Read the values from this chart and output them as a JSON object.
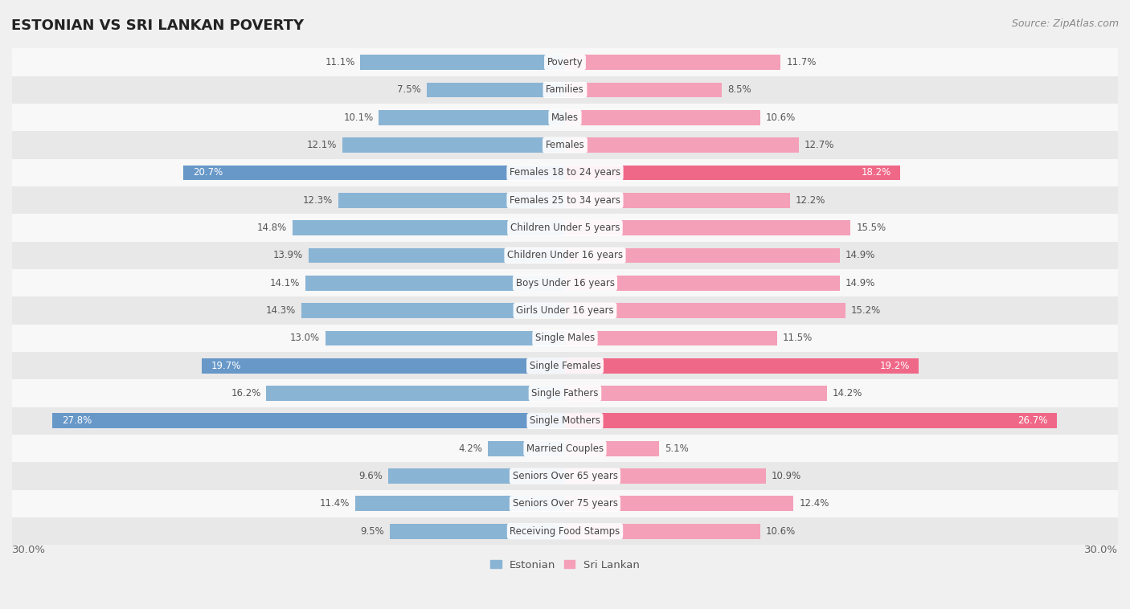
{
  "title": "ESTONIAN VS SRI LANKAN POVERTY",
  "source": "Source: ZipAtlas.com",
  "categories": [
    "Poverty",
    "Families",
    "Males",
    "Females",
    "Females 18 to 24 years",
    "Females 25 to 34 years",
    "Children Under 5 years",
    "Children Under 16 years",
    "Boys Under 16 years",
    "Girls Under 16 years",
    "Single Males",
    "Single Females",
    "Single Fathers",
    "Single Mothers",
    "Married Couples",
    "Seniors Over 65 years",
    "Seniors Over 75 years",
    "Receiving Food Stamps"
  ],
  "estonian": [
    11.1,
    7.5,
    10.1,
    12.1,
    20.7,
    12.3,
    14.8,
    13.9,
    14.1,
    14.3,
    13.0,
    19.7,
    16.2,
    27.8,
    4.2,
    9.6,
    11.4,
    9.5
  ],
  "sri_lankan": [
    11.7,
    8.5,
    10.6,
    12.7,
    18.2,
    12.2,
    15.5,
    14.9,
    14.9,
    15.2,
    11.5,
    19.2,
    14.2,
    26.7,
    5.1,
    10.9,
    12.4,
    10.6
  ],
  "estonian_color": "#8ab4d4",
  "sri_lankan_color": "#f4a0b8",
  "estonian_highlight_color": "#6898c8",
  "sri_lankan_highlight_color": "#f06888",
  "background_color": "#f0f0f0",
  "row_light_color": "#f8f8f8",
  "row_dark_color": "#e8e8e8",
  "highlight_threshold": 17.0,
  "xlim": 30.0,
  "bar_height": 0.55,
  "label_fontsize": 8.5,
  "cat_fontsize": 8.5,
  "title_fontsize": 13,
  "source_fontsize": 9
}
